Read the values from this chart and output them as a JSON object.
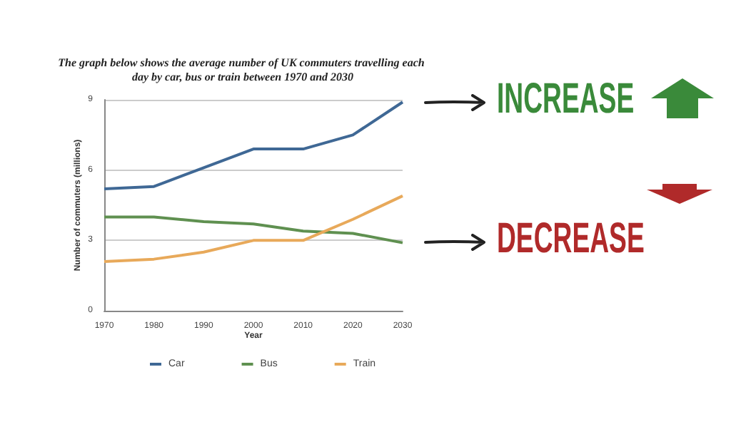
{
  "chart_data": {
    "type": "line",
    "title": "The graph below shows the average number of UK commuters travelling each day by car, bus or train between 1970 and 2030",
    "xlabel": "Year",
    "ylabel": "Number of commuters (millions)",
    "categories": [
      "1970",
      "1980",
      "1990",
      "2000",
      "2010",
      "2020",
      "2030"
    ],
    "series": [
      {
        "name": "Car",
        "color": "#3f6895",
        "values": [
          5.2,
          5.3,
          6.1,
          6.9,
          6.9,
          7.5,
          8.9
        ]
      },
      {
        "name": "Bus",
        "color": "#5f9050",
        "values": [
          4,
          4,
          3.8,
          3.7,
          3.4,
          3.3,
          2.9
        ]
      },
      {
        "name": "Train",
        "color": "#e8a95a",
        "values": [
          2.1,
          2.2,
          2.5,
          3,
          3,
          3.9,
          4.9
        ]
      }
    ],
    "ylim": [
      0,
      9
    ],
    "yticks": [
      0,
      3,
      6,
      9
    ],
    "grid": "y",
    "legend": "bottom",
    "marker": "none",
    "line_style": "solid",
    "annotations": [
      "INCREASE",
      "DECREASE"
    ]
  }
}
